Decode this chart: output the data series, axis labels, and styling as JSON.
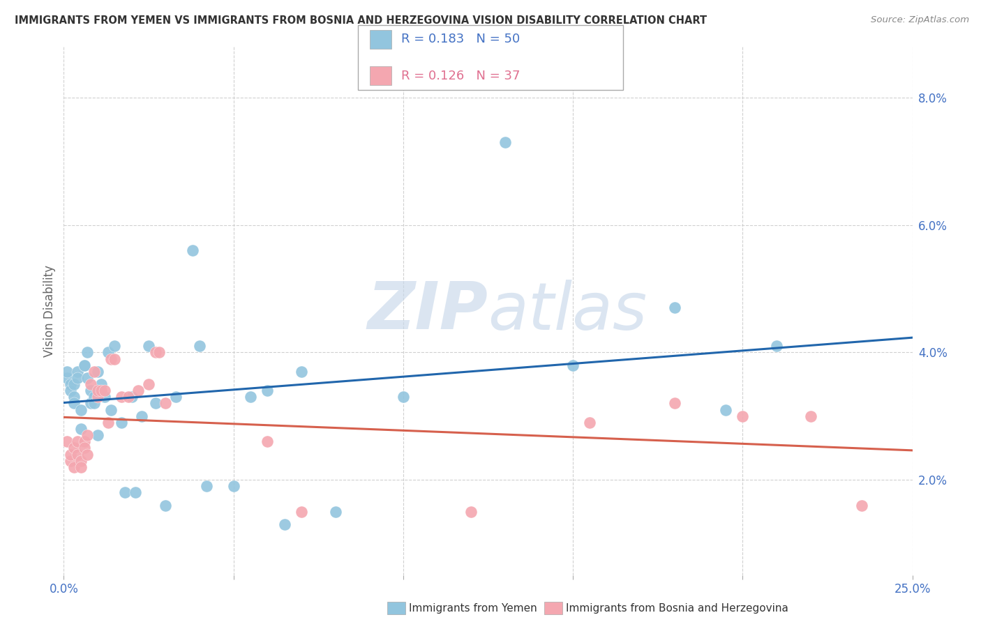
{
  "title": "IMMIGRANTS FROM YEMEN VS IMMIGRANTS FROM BOSNIA AND HERZEGOVINA VISION DISABILITY CORRELATION CHART",
  "source": "Source: ZipAtlas.com",
  "ylabel": "Vision Disability",
  "ylabel_right_ticks": [
    "8.0%",
    "6.0%",
    "4.0%",
    "2.0%"
  ],
  "ylabel_right_vals": [
    0.08,
    0.06,
    0.04,
    0.02
  ],
  "legend1_label": "Immigrants from Yemen",
  "legend2_label": "Immigrants from Bosnia and Herzegovina",
  "R1": "0.183",
  "N1": "50",
  "R2": "0.126",
  "N2": "37",
  "color_yemen": "#92c5de",
  "color_bosnia": "#f4a7b0",
  "line_color_yemen": "#2166ac",
  "line_color_bosnia": "#d6604d",
  "watermark_zip": "ZIP",
  "watermark_atlas": "atlas",
  "xlim": [
    0.0,
    0.25
  ],
  "ylim": [
    0.005,
    0.088
  ],
  "xticks": [
    0.0,
    0.05,
    0.1,
    0.15,
    0.2,
    0.25
  ],
  "yemen_x": [
    0.001,
    0.001,
    0.002,
    0.002,
    0.003,
    0.003,
    0.003,
    0.004,
    0.004,
    0.005,
    0.005,
    0.006,
    0.006,
    0.007,
    0.007,
    0.008,
    0.008,
    0.009,
    0.009,
    0.01,
    0.01,
    0.011,
    0.012,
    0.013,
    0.014,
    0.015,
    0.017,
    0.018,
    0.02,
    0.021,
    0.023,
    0.025,
    0.027,
    0.03,
    0.033,
    0.038,
    0.04,
    0.042,
    0.05,
    0.055,
    0.06,
    0.065,
    0.07,
    0.08,
    0.1,
    0.13,
    0.15,
    0.18,
    0.195,
    0.21
  ],
  "yemen_y": [
    0.036,
    0.037,
    0.035,
    0.034,
    0.035,
    0.033,
    0.032,
    0.037,
    0.036,
    0.031,
    0.028,
    0.038,
    0.038,
    0.04,
    0.036,
    0.034,
    0.032,
    0.033,
    0.032,
    0.037,
    0.027,
    0.035,
    0.033,
    0.04,
    0.031,
    0.041,
    0.029,
    0.018,
    0.033,
    0.018,
    0.03,
    0.041,
    0.032,
    0.016,
    0.033,
    0.056,
    0.041,
    0.019,
    0.019,
    0.033,
    0.034,
    0.013,
    0.037,
    0.015,
    0.033,
    0.073,
    0.038,
    0.047,
    0.031,
    0.041
  ],
  "bosnia_x": [
    0.001,
    0.002,
    0.002,
    0.003,
    0.003,
    0.004,
    0.004,
    0.005,
    0.005,
    0.006,
    0.006,
    0.007,
    0.007,
    0.008,
    0.009,
    0.01,
    0.01,
    0.011,
    0.012,
    0.013,
    0.014,
    0.015,
    0.017,
    0.019,
    0.022,
    0.025,
    0.027,
    0.028,
    0.03,
    0.06,
    0.07,
    0.12,
    0.155,
    0.18,
    0.2,
    0.22,
    0.235
  ],
  "bosnia_y": [
    0.026,
    0.023,
    0.024,
    0.025,
    0.022,
    0.026,
    0.024,
    0.023,
    0.022,
    0.026,
    0.025,
    0.024,
    0.027,
    0.035,
    0.037,
    0.033,
    0.034,
    0.034,
    0.034,
    0.029,
    0.039,
    0.039,
    0.033,
    0.033,
    0.034,
    0.035,
    0.04,
    0.04,
    0.032,
    0.026,
    0.015,
    0.015,
    0.029,
    0.032,
    0.03,
    0.03,
    0.016
  ]
}
